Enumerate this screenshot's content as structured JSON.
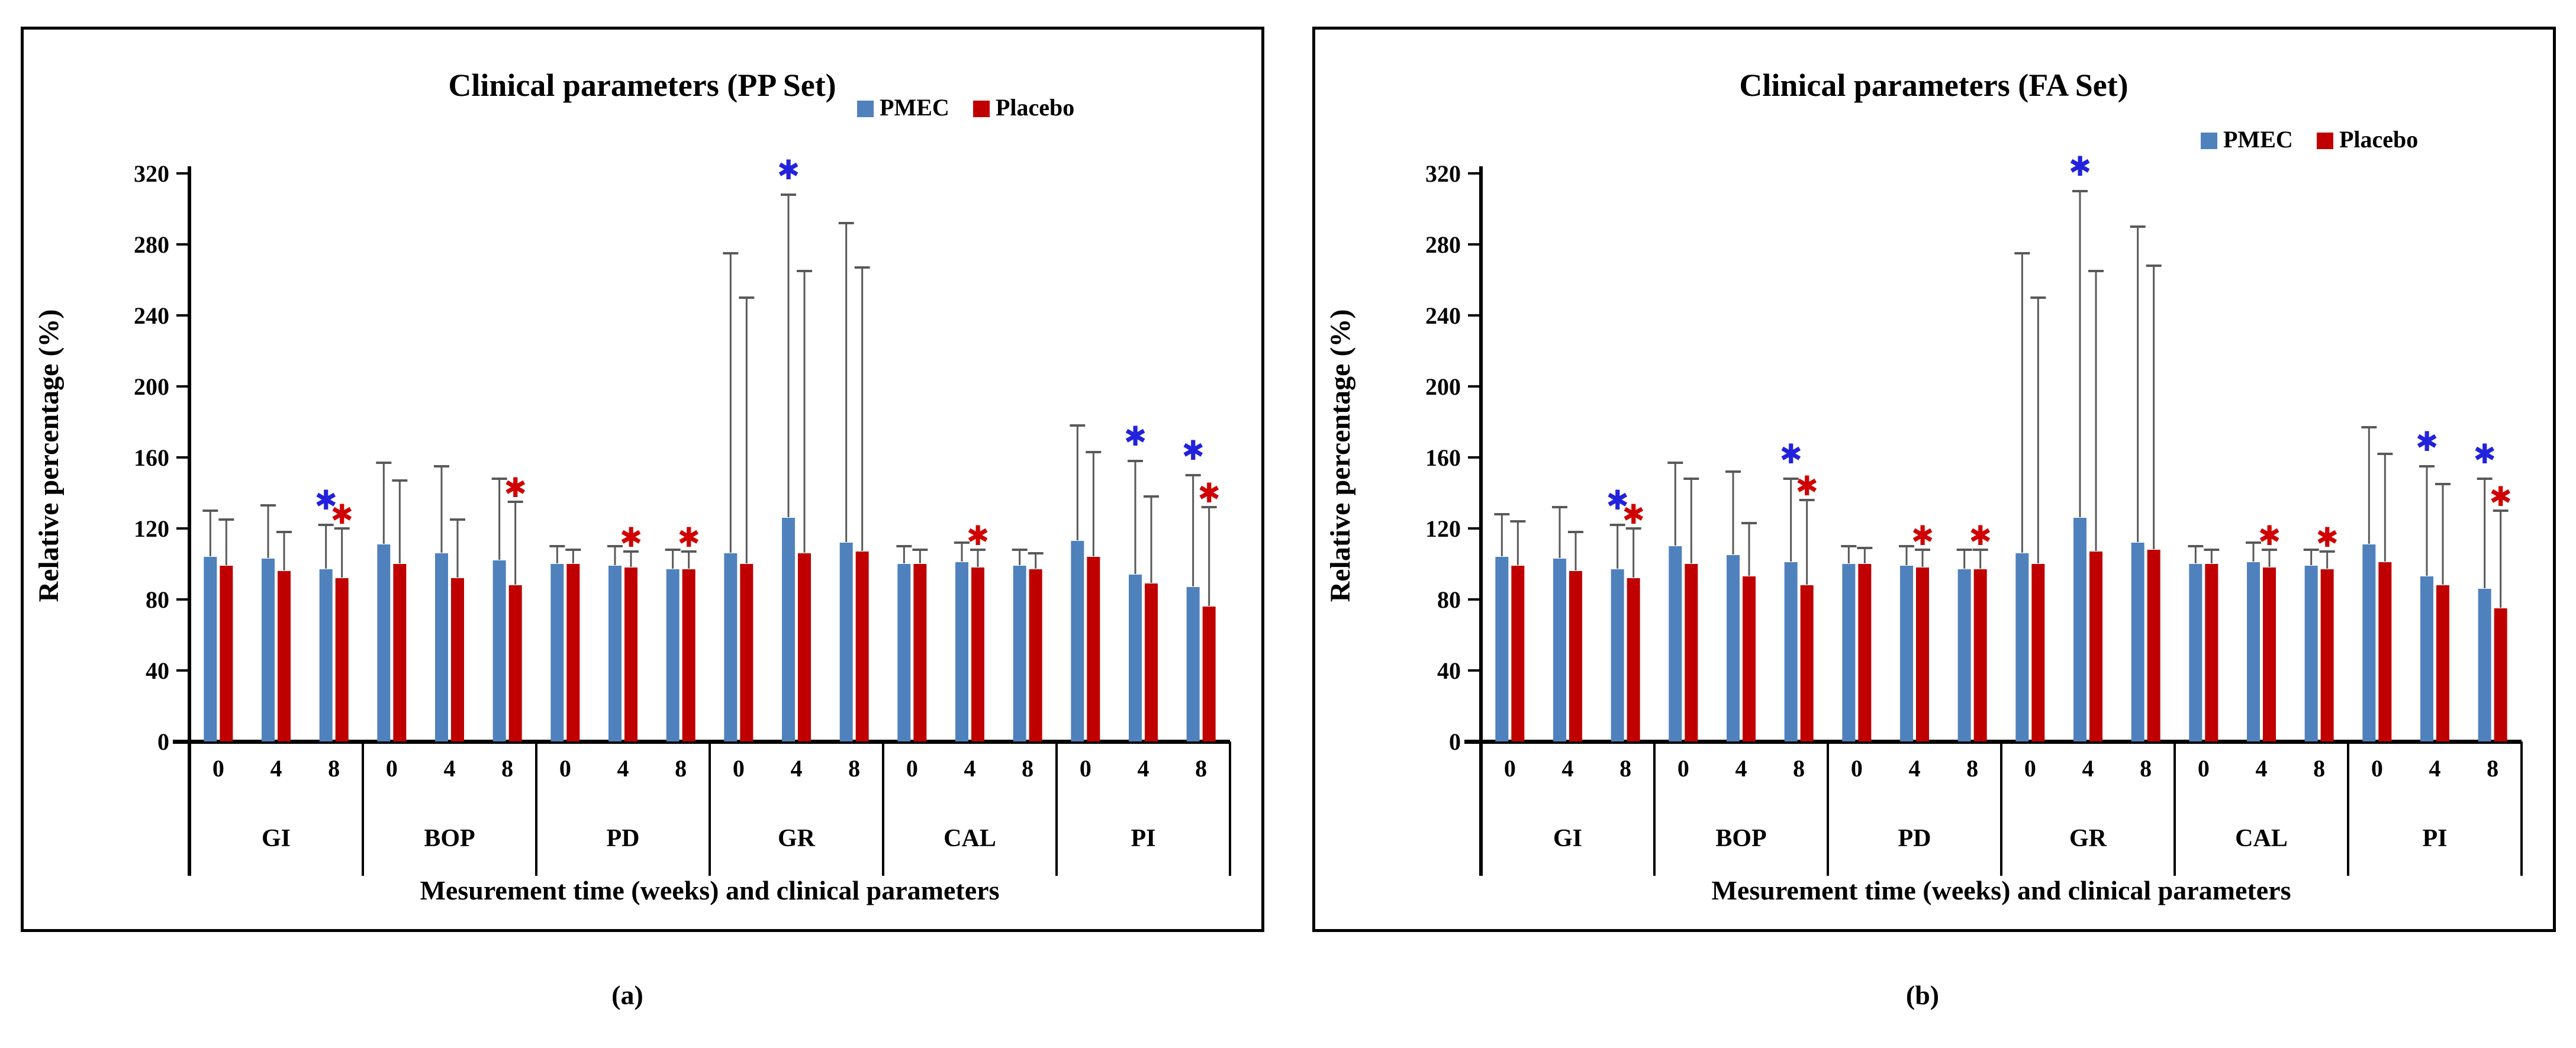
{
  "page": {
    "captions": {
      "a": "(a)",
      "b": "(b)"
    }
  },
  "colors": {
    "pmec": "#4F81BD",
    "placebo": "#C00000",
    "error_bar": "#595959",
    "axis": "#000000",
    "sig_pmec": "#2222DD",
    "sig_placebo": "#D00000"
  },
  "chart_data": [
    {
      "type": "bar",
      "title": "Clinical parameters (PP Set)",
      "ylabel": "Relative percentage (%)",
      "xlabel": "Mesurement time (weeks) and clinical parameters",
      "ylim": [
        0,
        320
      ],
      "ytick_step": 40,
      "grid": false,
      "legend_position": "top-right",
      "categories": [
        "GI",
        "BOP",
        "PD",
        "GR",
        "CAL",
        "PI"
      ],
      "times": [
        "0",
        "4",
        "8"
      ],
      "series": [
        {
          "name": "PMEC",
          "values": [
            [
              104,
              103,
              97
            ],
            [
              111,
              106,
              102
            ],
            [
              100,
              99,
              97
            ],
            [
              106,
              126,
              112
            ],
            [
              100,
              101,
              99
            ],
            [
              113,
              94,
              87
            ]
          ],
          "err_top": [
            [
              130,
              133,
              122
            ],
            [
              157,
              155,
              148
            ],
            [
              110,
              110,
              108
            ],
            [
              275,
              308,
              292
            ],
            [
              110,
              112,
              108
            ],
            [
              178,
              158,
              150
            ]
          ]
        },
        {
          "name": "Placebo",
          "values": [
            [
              99,
              96,
              92
            ],
            [
              100,
              92,
              88
            ],
            [
              100,
              98,
              97
            ],
            [
              100,
              106,
              107
            ],
            [
              100,
              98,
              97
            ],
            [
              104,
              89,
              76
            ]
          ],
          "err_top": [
            [
              125,
              118,
              120
            ],
            [
              147,
              125,
              135
            ],
            [
              108,
              107,
              107
            ],
            [
              250,
              265,
              267
            ],
            [
              108,
              108,
              106
            ],
            [
              163,
              138,
              132
            ]
          ]
        }
      ],
      "significance": [
        {
          "group": "GI",
          "time": "8",
          "series": "PMEC"
        },
        {
          "group": "GI",
          "time": "8",
          "series": "Placebo"
        },
        {
          "group": "BOP",
          "time": "8",
          "series": "Placebo"
        },
        {
          "group": "PD",
          "time": "4",
          "series": "Placebo"
        },
        {
          "group": "PD",
          "time": "8",
          "series": "Placebo"
        },
        {
          "group": "GR",
          "time": "4",
          "series": "PMEC"
        },
        {
          "group": "CAL",
          "time": "4",
          "series": "Placebo"
        },
        {
          "group": "PI",
          "time": "4",
          "series": "PMEC"
        },
        {
          "group": "PI",
          "time": "8",
          "series": "PMEC"
        },
        {
          "group": "PI",
          "time": "8",
          "series": "Placebo"
        }
      ]
    },
    {
      "type": "bar",
      "title": "Clinical parameters (FA Set)",
      "ylabel": "Relative percentage (%)",
      "xlabel": "Mesurement time (weeks) and clinical parameters",
      "ylim": [
        0,
        320
      ],
      "ytick_step": 40,
      "grid": false,
      "legend_position": "top-right",
      "categories": [
        "GI",
        "BOP",
        "PD",
        "GR",
        "CAL",
        "PI"
      ],
      "times": [
        "0",
        "4",
        "8"
      ],
      "series": [
        {
          "name": "PMEC",
          "values": [
            [
              104,
              103,
              97
            ],
            [
              110,
              105,
              101
            ],
            [
              100,
              99,
              97
            ],
            [
              106,
              126,
              112
            ],
            [
              100,
              101,
              99
            ],
            [
              111,
              93,
              86
            ]
          ],
          "err_top": [
            [
              128,
              132,
              122
            ],
            [
              157,
              152,
              148
            ],
            [
              110,
              110,
              108
            ],
            [
              275,
              310,
              290
            ],
            [
              110,
              112,
              108
            ],
            [
              177,
              155,
              148
            ]
          ]
        },
        {
          "name": "Placebo",
          "values": [
            [
              99,
              96,
              92
            ],
            [
              100,
              93,
              88
            ],
            [
              100,
              98,
              97
            ],
            [
              100,
              107,
              108
            ],
            [
              100,
              98,
              97
            ],
            [
              101,
              88,
              75
            ]
          ],
          "err_top": [
            [
              124,
              118,
              120
            ],
            [
              148,
              123,
              136
            ],
            [
              109,
              108,
              108
            ],
            [
              250,
              265,
              268
            ],
            [
              108,
              108,
              107
            ],
            [
              162,
              145,
              130
            ]
          ]
        }
      ],
      "significance": [
        {
          "group": "GI",
          "time": "8",
          "series": "PMEC"
        },
        {
          "group": "GI",
          "time": "8",
          "series": "Placebo"
        },
        {
          "group": "BOP",
          "time": "8",
          "series": "PMEC"
        },
        {
          "group": "BOP",
          "time": "8",
          "series": "Placebo"
        },
        {
          "group": "PD",
          "time": "4",
          "series": "Placebo"
        },
        {
          "group": "PD",
          "time": "8",
          "series": "Placebo"
        },
        {
          "group": "GR",
          "time": "4",
          "series": "PMEC"
        },
        {
          "group": "CAL",
          "time": "4",
          "series": "Placebo"
        },
        {
          "group": "CAL",
          "time": "8",
          "series": "Placebo"
        },
        {
          "group": "PI",
          "time": "4",
          "series": "PMEC"
        },
        {
          "group": "PI",
          "time": "8",
          "series": "PMEC"
        },
        {
          "group": "PI",
          "time": "8",
          "series": "Placebo"
        }
      ]
    }
  ]
}
